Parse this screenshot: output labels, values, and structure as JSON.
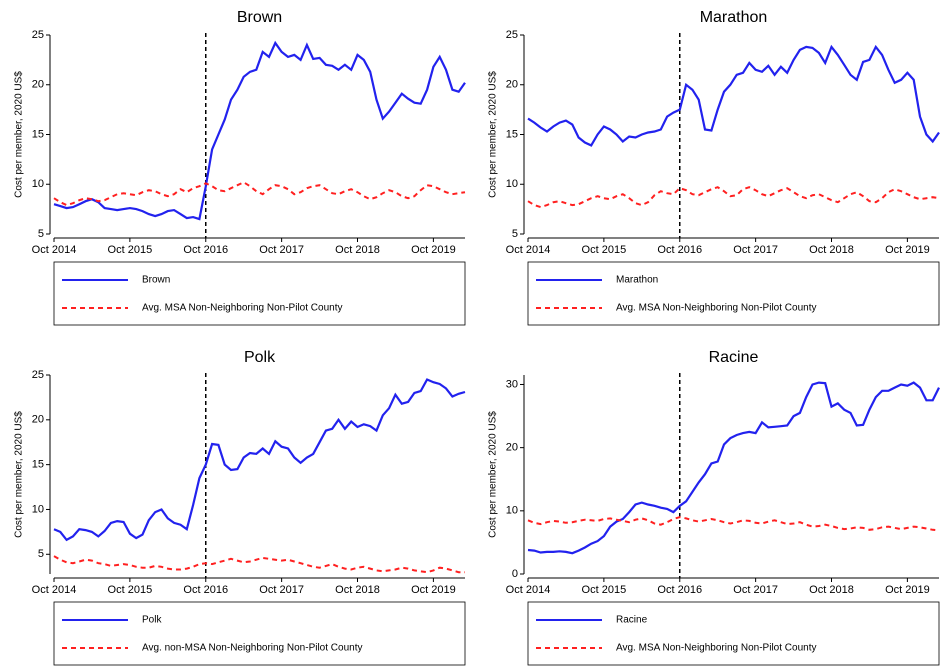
{
  "chart_data": [
    {
      "type": "line",
      "title": "Brown",
      "ylabel": "Cost per member, 2020 US$",
      "vline": "Oct 2016",
      "categories": [
        "Oct 2014",
        null,
        null,
        null,
        null,
        null,
        null,
        null,
        null,
        null,
        null,
        null,
        "Oct 2015",
        null,
        null,
        null,
        null,
        null,
        null,
        null,
        null,
        null,
        null,
        null,
        "Oct 2016",
        null,
        null,
        null,
        null,
        null,
        null,
        null,
        null,
        null,
        null,
        null,
        "Oct 2017",
        null,
        null,
        null,
        null,
        null,
        null,
        null,
        null,
        null,
        null,
        null,
        "Oct 2018",
        null,
        null,
        null,
        null,
        null,
        null,
        null,
        null,
        null,
        null,
        null,
        "Oct 2019",
        null,
        null,
        null,
        null,
        null
      ],
      "ylim": [
        5,
        25
      ],
      "yticks": [
        5,
        10,
        15,
        20,
        25
      ],
      "series": [
        {
          "name": "Brown",
          "color": "#2222ee",
          "linestyle": "solid",
          "values": [
            8.0,
            7.8,
            7.6,
            7.7,
            8.0,
            8.3,
            8.5,
            8.2,
            7.6,
            7.5,
            7.4,
            7.5,
            7.6,
            7.5,
            7.3,
            7.0,
            6.8,
            7.0,
            7.3,
            7.4,
            7.0,
            6.6,
            6.7,
            6.5,
            9.8,
            13.5,
            15,
            16.5,
            18.5,
            19.5,
            20.8,
            21.3,
            21.5,
            23.3,
            22.8,
            24.2,
            23.3,
            22.8,
            23,
            22.5,
            24,
            22.6,
            22.7,
            22,
            21.9,
            21.5,
            22,
            21.5,
            23,
            22.5,
            21.3,
            18.5,
            16.6,
            17.3,
            18.2,
            19.1,
            18.6,
            18.2,
            18.1,
            19.5,
            21.8,
            22.8,
            21.5,
            19.5,
            19.3,
            20.2
          ]
        },
        {
          "name": "Avg. MSA Non-Neighboring Non-Pilot County",
          "color": "#ff2020",
          "linestyle": "dashed",
          "values": [
            8.6,
            8.2,
            7.9,
            8.1,
            8.4,
            8.6,
            8.5,
            8.3,
            8.4,
            8.7,
            9.0,
            9.1,
            9.0,
            8.9,
            9.2,
            9.4,
            9.3,
            9.0,
            8.8,
            9.0,
            9.5,
            9.2,
            9.6,
            9.8,
            10.1,
            9.8,
            9.4,
            9.3,
            9.6,
            9.9,
            10.2,
            9.8,
            9.3,
            9.0,
            9.5,
            9.9,
            9.8,
            9.5,
            9.0,
            9.2,
            9.6,
            9.8,
            9.9,
            9.5,
            9.1,
            9.0,
            9.3,
            9.5,
            9.2,
            8.8,
            8.5,
            8.7,
            9.1,
            9.4,
            9.2,
            8.8,
            8.6,
            8.8,
            9.4,
            9.9,
            9.8,
            9.5,
            9.2,
            9.0,
            9.1,
            9.2
          ]
        }
      ]
    },
    {
      "type": "line",
      "title": "Marathon",
      "ylabel": "Cost per member, 2020 US$",
      "vline": "Oct 2016",
      "categories": [
        "Oct 2014",
        null,
        null,
        null,
        null,
        null,
        null,
        null,
        null,
        null,
        null,
        null,
        "Oct 2015",
        null,
        null,
        null,
        null,
        null,
        null,
        null,
        null,
        null,
        null,
        null,
        "Oct 2016",
        null,
        null,
        null,
        null,
        null,
        null,
        null,
        null,
        null,
        null,
        null,
        "Oct 2017",
        null,
        null,
        null,
        null,
        null,
        null,
        null,
        null,
        null,
        null,
        null,
        "Oct 2018",
        null,
        null,
        null,
        null,
        null,
        null,
        null,
        null,
        null,
        null,
        null,
        "Oct 2019",
        null,
        null,
        null,
        null,
        null
      ],
      "ylim": [
        5,
        25
      ],
      "yticks": [
        5,
        10,
        15,
        20,
        25
      ],
      "series": [
        {
          "name": "Marathon",
          "color": "#2222ee",
          "linestyle": "solid",
          "values": [
            16.6,
            16.2,
            15.7,
            15.3,
            15.8,
            16.2,
            16.4,
            16.0,
            14.7,
            14.2,
            13.9,
            15.0,
            15.8,
            15.5,
            15.0,
            14.3,
            14.8,
            14.7,
            15.0,
            15.2,
            15.3,
            15.5,
            16.8,
            17.2,
            17.5,
            20.0,
            19.5,
            18.5,
            15.5,
            15.4,
            17.5,
            19.3,
            20.0,
            21.0,
            21.2,
            22.2,
            21.5,
            21.3,
            21.9,
            21.0,
            21.8,
            21.2,
            22.5,
            23.5,
            23.8,
            23.7,
            23.2,
            22.2,
            23.8,
            23.0,
            22.0,
            21.0,
            20.5,
            22.3,
            22.5,
            23.8,
            23.0,
            21.5,
            20.2,
            20.5,
            21.2,
            20.5,
            16.8,
            15.0,
            14.3,
            15.2
          ]
        },
        {
          "name": "Avg. MSA Non-Neighboring Non-Pilot County",
          "color": "#ff2020",
          "linestyle": "dashed",
          "values": [
            8.3,
            7.9,
            7.7,
            7.9,
            8.2,
            8.3,
            8.1,
            7.9,
            8.0,
            8.3,
            8.6,
            8.8,
            8.6,
            8.5,
            8.8,
            9.0,
            8.6,
            8.1,
            7.9,
            8.2,
            8.9,
            9.3,
            9.1,
            9.0,
            9.6,
            9.4,
            9.0,
            8.9,
            9.2,
            9.5,
            9.7,
            9.3,
            8.8,
            8.9,
            9.5,
            9.7,
            9.4,
            9.0,
            8.8,
            9.1,
            9.4,
            9.6,
            9.2,
            8.8,
            8.6,
            8.9,
            9.0,
            8.7,
            8.4,
            8.2,
            8.6,
            9.0,
            9.2,
            8.8,
            8.3,
            8.2,
            8.6,
            9.2,
            9.5,
            9.3,
            9.0,
            8.7,
            8.5,
            8.6,
            8.7,
            8.6
          ]
        }
      ]
    },
    {
      "type": "line",
      "title": "Polk",
      "ylabel": "Cost per member, 2020 US$",
      "vline": "Oct 2016",
      "categories": [
        "Oct 2014",
        null,
        null,
        null,
        null,
        null,
        null,
        null,
        null,
        null,
        null,
        null,
        "Oct 2015",
        null,
        null,
        null,
        null,
        null,
        null,
        null,
        null,
        null,
        null,
        null,
        "Oct 2016",
        null,
        null,
        null,
        null,
        null,
        null,
        null,
        null,
        null,
        null,
        null,
        "Oct 2017",
        null,
        null,
        null,
        null,
        null,
        null,
        null,
        null,
        null,
        null,
        null,
        "Oct 2018",
        null,
        null,
        null,
        null,
        null,
        null,
        null,
        null,
        null,
        null,
        null,
        "Oct 2019",
        null,
        null,
        null,
        null,
        null
      ],
      "ylim": [
        2.8,
        25
      ],
      "yticks": [
        5,
        10,
        15,
        20,
        25
      ],
      "series": [
        {
          "name": "Polk",
          "color": "#2222ee",
          "linestyle": "solid",
          "values": [
            7.8,
            7.5,
            6.6,
            7.0,
            7.8,
            7.7,
            7.5,
            7.0,
            7.6,
            8.5,
            8.7,
            8.6,
            7.3,
            6.8,
            7.2,
            8.8,
            9.7,
            10.0,
            9.0,
            8.5,
            8.3,
            7.8,
            10.5,
            13.5,
            15.0,
            17.3,
            17.2,
            15.0,
            14.4,
            14.5,
            15.8,
            16.3,
            16.2,
            16.8,
            16.2,
            17.6,
            17.0,
            16.8,
            15.8,
            15.2,
            15.8,
            16.2,
            17.5,
            18.8,
            19.0,
            20.0,
            19.0,
            19.8,
            19.2,
            19.5,
            19.3,
            18.8,
            20.5,
            21.3,
            22.8,
            21.8,
            22.0,
            23.0,
            23.2,
            24.5,
            24.2,
            24.0,
            23.5,
            22.6,
            22.9,
            23.1
          ]
        },
        {
          "name": "Avg. non-MSA Non-Neighboring Non-Pilot County",
          "color": "#ff2020",
          "linestyle": "dashed",
          "values": [
            4.8,
            4.4,
            4.1,
            4.0,
            4.2,
            4.4,
            4.3,
            4.0,
            3.9,
            3.7,
            3.8,
            3.9,
            3.8,
            3.6,
            3.5,
            3.5,
            3.7,
            3.6,
            3.4,
            3.3,
            3.3,
            3.4,
            3.6,
            3.9,
            4.0,
            3.9,
            4.1,
            4.3,
            4.5,
            4.3,
            4.1,
            4.2,
            4.4,
            4.6,
            4.5,
            4.4,
            4.3,
            4.4,
            4.2,
            4.0,
            3.8,
            3.6,
            3.5,
            3.7,
            3.9,
            3.6,
            3.4,
            3.3,
            3.5,
            3.6,
            3.4,
            3.2,
            3.1,
            3.2,
            3.3,
            3.5,
            3.4,
            3.2,
            3.1,
            3.0,
            3.2,
            3.5,
            3.4,
            3.2,
            3.0,
            3.0
          ]
        }
      ]
    },
    {
      "type": "line",
      "title": "Racine",
      "ylabel": "Cost per member, 2020 US$",
      "vline": "Oct 2016",
      "categories": [
        "Oct 2014",
        null,
        null,
        null,
        null,
        null,
        null,
        null,
        null,
        null,
        null,
        null,
        "Oct 2015",
        null,
        null,
        null,
        null,
        null,
        null,
        null,
        null,
        null,
        null,
        null,
        "Oct 2016",
        null,
        null,
        null,
        null,
        null,
        null,
        null,
        null,
        null,
        null,
        null,
        "Oct 2017",
        null,
        null,
        null,
        null,
        null,
        null,
        null,
        null,
        null,
        null,
        null,
        "Oct 2018",
        null,
        null,
        null,
        null,
        null,
        null,
        null,
        null,
        null,
        null,
        null,
        "Oct 2019",
        null,
        null,
        null,
        null,
        null
      ],
      "ylim": [
        0,
        31.5
      ],
      "yticks": [
        0,
        10,
        20,
        30
      ],
      "series": [
        {
          "name": "Racine",
          "color": "#2222ee",
          "linestyle": "solid",
          "values": [
            3.8,
            3.7,
            3.4,
            3.5,
            3.5,
            3.6,
            3.5,
            3.3,
            3.7,
            4.2,
            4.8,
            5.2,
            6.0,
            7.5,
            8.3,
            8.7,
            9.8,
            11.0,
            11.3,
            11.0,
            10.8,
            10.5,
            10.3,
            9.8,
            10.8,
            11.5,
            13.0,
            14.5,
            15.8,
            17.5,
            17.8,
            20.5,
            21.5,
            22.0,
            22.3,
            22.5,
            22.3,
            24.0,
            23.2,
            23.3,
            23.4,
            23.5,
            25.0,
            25.5,
            28.0,
            30.0,
            30.3,
            30.2,
            26.5,
            27.0,
            26.0,
            25.5,
            23.5,
            23.6,
            26.0,
            28.0,
            29.0,
            29.0,
            29.5,
            30.0,
            29.8,
            30.3,
            29.5,
            27.5,
            27.5,
            29.5
          ]
        },
        {
          "name": "Avg. MSA Non-Neighboring Non-Pilot County",
          "color": "#ff2020",
          "linestyle": "dashed",
          "values": [
            8.5,
            8.1,
            7.9,
            8.2,
            8.4,
            8.3,
            8.1,
            8.2,
            8.4,
            8.6,
            8.5,
            8.4,
            8.7,
            8.8,
            8.6,
            8.4,
            8.2,
            8.6,
            8.8,
            8.5,
            8.0,
            7.8,
            8.2,
            8.7,
            9.0,
            8.8,
            8.5,
            8.3,
            8.5,
            8.7,
            8.5,
            8.2,
            8.0,
            8.2,
            8.5,
            8.4,
            8.1,
            8.0,
            8.3,
            8.5,
            8.2,
            7.9,
            8.0,
            8.2,
            7.8,
            7.5,
            7.6,
            7.8,
            7.6,
            7.3,
            7.1,
            7.2,
            7.4,
            7.3,
            7.0,
            7.1,
            7.4,
            7.5,
            7.3,
            7.1,
            7.3,
            7.5,
            7.4,
            7.2,
            7.0,
            6.9
          ]
        }
      ]
    }
  ]
}
